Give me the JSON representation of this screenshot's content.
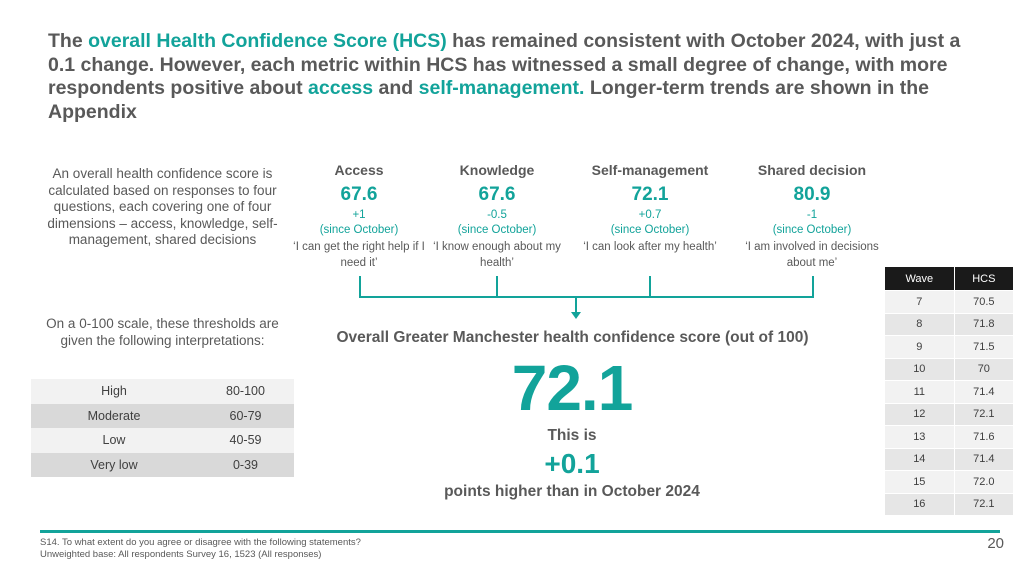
{
  "headline": {
    "p1": "The ",
    "h1": "overall Health Confidence Score (HCS)",
    "p2": " has remained consistent with October 2024, with just a 0.1 change. However, each metric within HCS has witnessed a small degree of change, with more respondents positive about ",
    "h2": "access",
    "p3": " and ",
    "h3": "self-management.",
    "p4": " Longer-term trends are shown in the Appendix"
  },
  "intro_text": "An overall health confidence score is calculated based on responses to four questions, each covering one of four dimensions – access, knowledge, self-management, shared decisions",
  "scale_intro": "On a 0-100 scale, these thresholds are given the following interpretations:",
  "interpretations": [
    {
      "label": "High",
      "range": "80-100"
    },
    {
      "label": "Moderate",
      "range": "60-79"
    },
    {
      "label": "Low",
      "range": "40-59"
    },
    {
      "label": "Very low",
      "range": "0-39"
    }
  ],
  "metrics": [
    {
      "title": "Access",
      "value": "67.6",
      "change": "+1",
      "since": "(since October)",
      "question": "‘I can get the right help if I need it’"
    },
    {
      "title": "Knowledge",
      "value": "67.6",
      "change": "-0.5",
      "since": "(since  October)",
      "question": "‘I  know  enough about my health’"
    },
    {
      "title": "Self-management",
      "value": "72.1",
      "change": "+0.7",
      "since": "(since October)",
      "question": "‘I can look after my health’"
    },
    {
      "title": "Shared decision",
      "value": "80.9",
      "change": "-1",
      "since": "(since October)",
      "question": "‘I am involved in decisions about me’"
    }
  ],
  "overall": {
    "label": "Overall Greater Manchester health confidence score (out of 100)",
    "score": "72.1",
    "this_is": "This is",
    "diff": "+0.1",
    "points_higher": "points higher than in October 2024"
  },
  "wave_table": {
    "headers": [
      "Wave",
      "HCS"
    ],
    "rows": [
      [
        "7",
        "70.5"
      ],
      [
        "8",
        "71.8"
      ],
      [
        "9",
        "71.5"
      ],
      [
        "10",
        "70"
      ],
      [
        "11",
        "71.4"
      ],
      [
        "12",
        "72.1"
      ],
      [
        "13",
        "71.6"
      ],
      [
        "14",
        "71.4"
      ],
      [
        "15",
        "72.0"
      ],
      [
        "16",
        "72.1"
      ]
    ]
  },
  "footnote": {
    "line1": "S14. To what extent do you agree or disagree with the following statements?",
    "line2": "Unweighted base: All respondents Survey 16, 1523 (All responses)"
  },
  "page_number": "20",
  "colors": {
    "accent": "#12a39a",
    "text": "#595959",
    "header_dark": "#1a1a1a"
  }
}
